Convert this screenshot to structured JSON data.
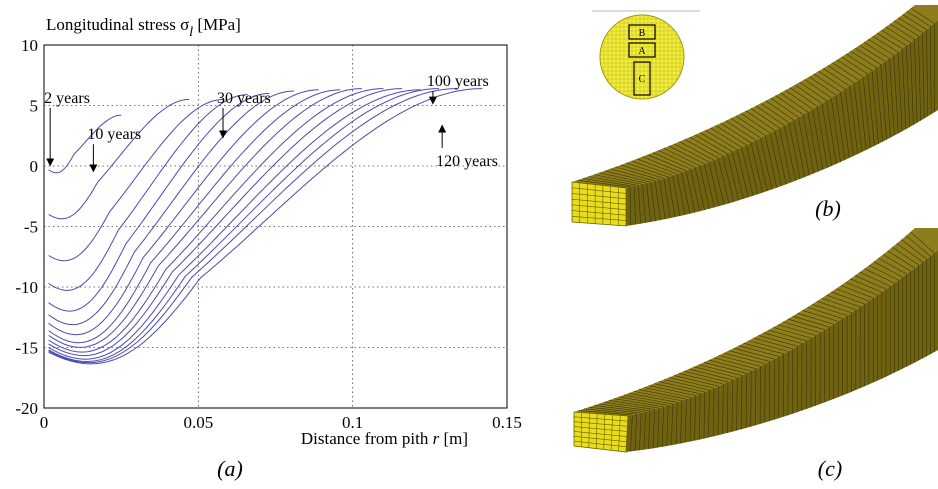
{
  "chart_data": {
    "type": "line",
    "ylabel_main": "Longitudinal stress σ",
    "ylabel_sub": "l",
    "ylabel_unit": " [MPa]",
    "xlabel_main": "Distance from pith ",
    "xlabel_var": "r",
    "xlabel_unit": " [m]",
    "xlim": [
      0,
      0.15
    ],
    "ylim": [
      -20,
      10
    ],
    "xticks": [
      0,
      0.05,
      0.1,
      0.15
    ],
    "yticks": [
      10,
      5,
      0,
      -5,
      -10,
      -15,
      -20
    ],
    "grid": true,
    "line_color": "#4a4ab5",
    "series": [
      {
        "x": [
          0.0015,
          0.025
        ],
        "y_start": -0.3,
        "y_end": 4.2,
        "dip": 0.5
      },
      {
        "x": [
          0.0015,
          0.047
        ],
        "y_start": -4.0,
        "y_end": 5.5,
        "dip": 0.8
      },
      {
        "x": [
          0.0015,
          0.058
        ],
        "y_start": -7.4,
        "y_end": 5.5,
        "dip": 1.0
      },
      {
        "x": [
          0.0015,
          0.066
        ],
        "y_start": -9.7,
        "y_end": 5.9,
        "dip": 1.3
      },
      {
        "x": [
          0.0015,
          0.073
        ],
        "y_start": -11.3,
        "y_end": 6.0,
        "dip": 1.5
      },
      {
        "x": [
          0.0015,
          0.081
        ],
        "y_start": -12.3,
        "y_end": 6.2,
        "dip": 1.7
      },
      {
        "x": [
          0.0015,
          0.089
        ],
        "y_start": -13.0,
        "y_end": 6.3,
        "dip": 1.9
      },
      {
        "x": [
          0.0015,
          0.096
        ],
        "y_start": -13.6,
        "y_end": 6.3,
        "dip": 2.0
      },
      {
        "x": [
          0.0015,
          0.103
        ],
        "y_start": -14.0,
        "y_end": 6.4,
        "dip": 2.0
      },
      {
        "x": [
          0.0015,
          0.11
        ],
        "y_start": -14.4,
        "y_end": 6.4,
        "dip": 2.0
      },
      {
        "x": [
          0.0015,
          0.116
        ],
        "y_start": -14.7,
        "y_end": 6.4,
        "dip": 2.0
      },
      {
        "x": [
          0.0015,
          0.122
        ],
        "y_start": -15.0,
        "y_end": 6.3,
        "dip": 2.0
      },
      {
        "x": [
          0.0015,
          0.128
        ],
        "y_start": -15.2,
        "y_end": 6.4,
        "dip": 2.0
      },
      {
        "x": [
          0.0015,
          0.134
        ],
        "y_start": -15.3,
        "y_end": 6.4,
        "dip": 2.0
      },
      {
        "x": [
          0.0015,
          0.142
        ],
        "y_start": -15.4,
        "y_end": 6.4,
        "dip": 2.0
      }
    ],
    "annotations": [
      {
        "text": "2 years",
        "tip": [
          0.002,
          0.3
        ],
        "tail": [
          0.002,
          4.8
        ]
      },
      {
        "text": "10 years",
        "tip": [
          0.016,
          -0.2
        ],
        "tail": [
          0.016,
          1.8
        ]
      },
      {
        "text": "30 years",
        "tip": [
          0.058,
          2.6
        ],
        "tail": [
          0.058,
          4.8
        ]
      },
      {
        "text": "100 years",
        "tip": [
          0.126,
          5.4
        ],
        "tail": [
          0.126,
          6.2
        ]
      },
      {
        "text": "120 years",
        "tip": [
          0.129,
          3.1
        ],
        "tail": [
          0.129,
          1.5
        ]
      }
    ]
  },
  "panels": {
    "a": "(a)",
    "b": "(b)",
    "c": "(c)"
  },
  "cross_section": {
    "boxes": [
      "B",
      "A",
      "C"
    ],
    "fill": "#f3ee3c"
  },
  "beam": {
    "top_color": "#8d7d1c",
    "side_color": "#6f6312",
    "end_color": "#e9dc1c"
  }
}
